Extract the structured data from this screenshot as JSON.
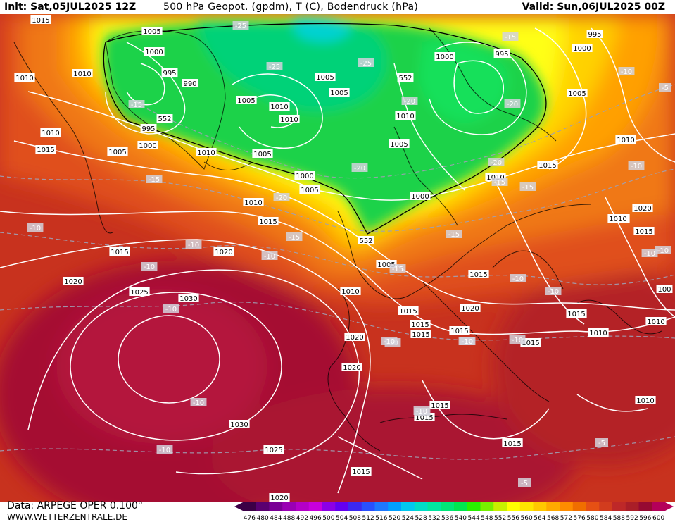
{
  "header": {
    "init": "Init: Sat,05JUL2025 12Z",
    "title": "500 hPa Geopot. (gpdm), T (C), Bodendruck (hPa)",
    "valid": "Valid: Sun,06JUL2025 00Z"
  },
  "footer": {
    "data_label": "Data: ARPEGE OPER 0.100°",
    "site": "WWW.WETTERZENTRALE.DE"
  },
  "colorscale": {
    "values": [
      "476",
      "480",
      "484",
      "488",
      "492",
      "496",
      "500",
      "504",
      "508",
      "512",
      "516",
      "520",
      "524",
      "528",
      "532",
      "536",
      "540",
      "544",
      "548",
      "552",
      "556",
      "560",
      "564",
      "568",
      "572",
      "576",
      "580",
      "584",
      "588",
      "592",
      "596",
      "600"
    ],
    "colors": [
      "#3c0046",
      "#5a0070",
      "#7a0096",
      "#9a00b4",
      "#b400c8",
      "#c800dc",
      "#8c00e6",
      "#6400f0",
      "#3c28f0",
      "#2850ff",
      "#1e78ff",
      "#00a0ff",
      "#00c8f0",
      "#00dcc8",
      "#00e6a0",
      "#00e678",
      "#00e650",
      "#28f000",
      "#78f000",
      "#c8f000",
      "#ffff00",
      "#ffe600",
      "#ffc800",
      "#ffaa00",
      "#ff8c00",
      "#f06e00",
      "#e65014",
      "#d23c1e",
      "#be2828",
      "#aa1e28",
      "#960a32",
      "#b4005a"
    ]
  },
  "map_labels": {
    "isobars": [
      {
        "t": "1015"
      },
      {
        "t": "1010"
      },
      {
        "t": "1010"
      },
      {
        "t": "1010"
      },
      {
        "t": "1015"
      },
      {
        "t": "1005"
      },
      {
        "t": "1005"
      },
      {
        "t": "1000"
      },
      {
        "t": "995"
      },
      {
        "t": "990"
      },
      {
        "t": "995"
      },
      {
        "t": "1000"
      },
      {
        "t": "1005"
      },
      {
        "t": "1010"
      },
      {
        "t": "1010"
      },
      {
        "t": "1010"
      },
      {
        "t": "1005"
      },
      {
        "t": "1005"
      },
      {
        "t": "1005"
      },
      {
        "t": "1000"
      },
      {
        "t": "1005"
      },
      {
        "t": "1000"
      },
      {
        "t": "995"
      },
      {
        "t": "995"
      },
      {
        "t": "1000"
      },
      {
        "t": "1005"
      },
      {
        "t": "1010"
      },
      {
        "t": "1005"
      },
      {
        "t": "1000"
      },
      {
        "t": "1015"
      },
      {
        "t": "1010"
      },
      {
        "t": "1010"
      },
      {
        "t": "1015"
      },
      {
        "t": "1015"
      },
      {
        "t": "1020"
      },
      {
        "t": "1020"
      },
      {
        "t": "1025"
      },
      {
        "t": "1030"
      },
      {
        "t": "1030"
      },
      {
        "t": "1025"
      },
      {
        "t": "1020"
      },
      {
        "t": "1020"
      },
      {
        "t": "1005"
      },
      {
        "t": "1010"
      },
      {
        "t": "1015"
      },
      {
        "t": "1015"
      },
      {
        "t": "1015"
      },
      {
        "t": "1015"
      },
      {
        "t": "1015"
      },
      {
        "t": "1015"
      },
      {
        "t": "1015"
      },
      {
        "t": "1020"
      },
      {
        "t": "1015"
      },
      {
        "t": "1015"
      },
      {
        "t": "1015"
      },
      {
        "t": "1010"
      },
      {
        "t": "1010"
      },
      {
        "t": "1010"
      },
      {
        "t": "1015"
      },
      {
        "t": "1015"
      },
      {
        "t": "1015"
      },
      {
        "t": "1020"
      },
      {
        "t": "1020"
      },
      {
        "t": "1010"
      },
      {
        "t": "1010"
      },
      {
        "t": "1010"
      },
      {
        "t": "1015"
      },
      {
        "t": "100"
      }
    ],
    "temps": [
      {
        "t": "-25"
      },
      {
        "t": "-25"
      },
      {
        "t": "-25"
      },
      {
        "t": "-15"
      },
      {
        "t": "-20"
      },
      {
        "t": "-20"
      },
      {
        "t": "-20"
      },
      {
        "t": "-20"
      },
      {
        "t": "-15"
      },
      {
        "t": "-15"
      },
      {
        "t": "-10"
      },
      {
        "t": "-10"
      },
      {
        "t": "-10"
      },
      {
        "t": "-10"
      },
      {
        "t": "-15"
      },
      {
        "t": "-10"
      },
      {
        "t": "-15"
      },
      {
        "t": "-15"
      },
      {
        "t": "-10"
      },
      {
        "t": "-10"
      },
      {
        "t": "-10"
      },
      {
        "t": "-10"
      },
      {
        "t": "-10"
      },
      {
        "t": "-10"
      },
      {
        "t": "-10"
      },
      {
        "t": "-10"
      },
      {
        "t": "-10"
      },
      {
        "t": "-10"
      },
      {
        "t": "-10"
      },
      {
        "t": "-5"
      },
      {
        "t": "-5"
      },
      {
        "t": "-5"
      },
      {
        "t": "-15"
      },
      {
        "t": "-10"
      },
      {
        "t": "-20"
      },
      {
        "t": "-15"
      },
      {
        "t": "-10"
      },
      {
        "t": "-10"
      },
      {
        "t": "-10"
      }
    ],
    "geopot": [
      {
        "t": "552"
      },
      {
        "t": "552"
      },
      {
        "t": "552"
      }
    ]
  }
}
